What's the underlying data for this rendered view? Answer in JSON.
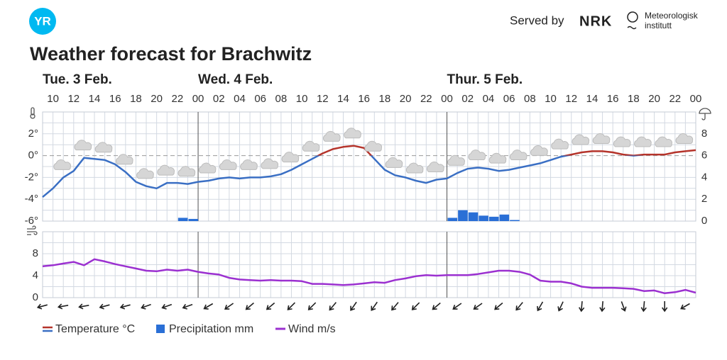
{
  "header": {
    "logo": "YR",
    "served_by": "Served by",
    "partners": [
      "NRK",
      "Meteorologisk",
      "institutt"
    ]
  },
  "chart_data": [
    {
      "type": "line",
      "title": "Weather forecast for Brachwitz",
      "days": [
        "Tue. 3 Feb.",
        "Wed. 4 Feb.",
        "Thur. 5 Feb."
      ],
      "categories": [
        null,
        "10",
        null,
        "12",
        null,
        "14",
        null,
        "16",
        null,
        "18",
        null,
        "20",
        null,
        "22",
        null,
        "00",
        null,
        "02",
        null,
        "04",
        null,
        "06",
        null,
        "08",
        null,
        "10",
        null,
        "12",
        null,
        "14",
        null,
        "16",
        null,
        "18",
        null,
        "20",
        null,
        "22",
        null,
        "00",
        null,
        "02",
        null,
        "04",
        null,
        "06",
        null,
        "08",
        null,
        "10",
        null,
        "12",
        null,
        "14",
        null,
        "16",
        null,
        "18",
        null,
        "20",
        null,
        "22",
        null,
        "00"
      ],
      "series": [
        {
          "name": "Temperature °C",
          "type": "line",
          "color": "#3a6fc4",
          "warm_color": "#b5342b",
          "values": [
            -3.8,
            -3.0,
            -2.0,
            -1.4,
            -0.2,
            -0.3,
            -0.4,
            -0.8,
            -1.5,
            -2.4,
            -2.8,
            -3.0,
            -2.5,
            -2.5,
            -2.6,
            -2.4,
            -2.3,
            -2.1,
            -2.0,
            -2.1,
            -2.0,
            -2.0,
            -1.9,
            -1.7,
            -1.3,
            -0.8,
            -0.3,
            0.2,
            0.6,
            0.8,
            0.9,
            0.7,
            -0.3,
            -1.3,
            -1.8,
            -2.0,
            -2.3,
            -2.5,
            -2.2,
            -2.1,
            -1.6,
            -1.2,
            -1.1,
            -1.2,
            -1.4,
            -1.3,
            -1.1,
            -0.9,
            -0.7,
            -0.4,
            -0.1,
            0.1,
            0.3,
            0.4,
            0.4,
            0.3,
            0.1,
            0.0,
            0.1,
            0.1,
            0.1,
            0.3,
            0.4,
            0.5
          ]
        },
        {
          "name": "Precipitation mm",
          "type": "bar",
          "axis": "y2",
          "color": "#2a6fd6",
          "values": [
            0,
            0,
            0,
            0,
            0,
            0,
            0,
            0,
            0,
            0,
            0,
            0,
            0,
            0.3,
            0.2,
            0,
            0,
            0,
            0,
            0,
            0,
            0,
            0,
            0,
            0,
            0,
            0,
            0,
            0,
            0,
            0,
            0,
            0,
            0,
            0,
            0,
            0,
            0,
            0,
            0.3,
            1.0,
            0.8,
            0.5,
            0.4,
            0.6,
            0.1,
            0,
            0,
            0,
            0,
            0,
            0,
            0,
            0,
            0,
            0,
            0,
            0,
            0,
            0,
            0,
            0,
            0,
            0
          ]
        }
      ],
      "ylim": [
        -6,
        4
      ],
      "yticks": [
        {
          "value": -6,
          "label": "-6°"
        },
        {
          "value": -4,
          "label": "-4°"
        },
        {
          "value": -2,
          "label": "-2°"
        },
        {
          "value": 0,
          "label": "0°"
        },
        {
          "value": 2,
          "label": "2°"
        }
      ],
      "ygrid": [
        -5,
        -3,
        -1,
        1,
        3,
        4
      ],
      "y2lim": [
        0,
        10
      ],
      "y2ticks": [
        0,
        2,
        4,
        6,
        8
      ],
      "grid": true
    },
    {
      "type": "line",
      "series": [
        {
          "name": "Wind m/s",
          "type": "line",
          "color": "#9b30d0",
          "values": [
            5.7,
            5.9,
            6.2,
            6.5,
            5.9,
            7.0,
            6.6,
            6.1,
            5.7,
            5.3,
            4.9,
            4.8,
            5.1,
            4.9,
            5.1,
            4.7,
            4.4,
            4.2,
            3.6,
            3.3,
            3.2,
            3.1,
            3.2,
            3.1,
            3.1,
            3.0,
            2.5,
            2.5,
            2.4,
            2.3,
            2.4,
            2.6,
            2.8,
            2.7,
            3.2,
            3.5,
            3.9,
            4.1,
            4.0,
            4.1,
            4.1,
            4.1,
            4.3,
            4.6,
            4.9,
            4.9,
            4.7,
            4.2,
            3.1,
            2.9,
            2.9,
            2.6,
            2.0,
            1.8,
            1.8,
            1.8,
            1.7,
            1.6,
            1.2,
            1.3,
            0.8,
            1.0,
            1.4,
            0.9
          ]
        }
      ],
      "wind_direction": [
        75,
        80,
        80,
        75,
        75,
        70,
        70,
        70,
        60,
        55,
        50,
        50,
        45,
        45,
        40,
        35,
        35,
        40,
        45,
        50,
        55,
        55,
        50,
        40,
        30,
        25,
        5,
        5,
        340,
        5,
        0,
        60
      ],
      "ylim": [
        0,
        12
      ],
      "yticks": [
        0,
        4,
        8
      ],
      "ygrid": [
        2,
        6,
        10,
        12
      ],
      "grid": true
    }
  ]
}
